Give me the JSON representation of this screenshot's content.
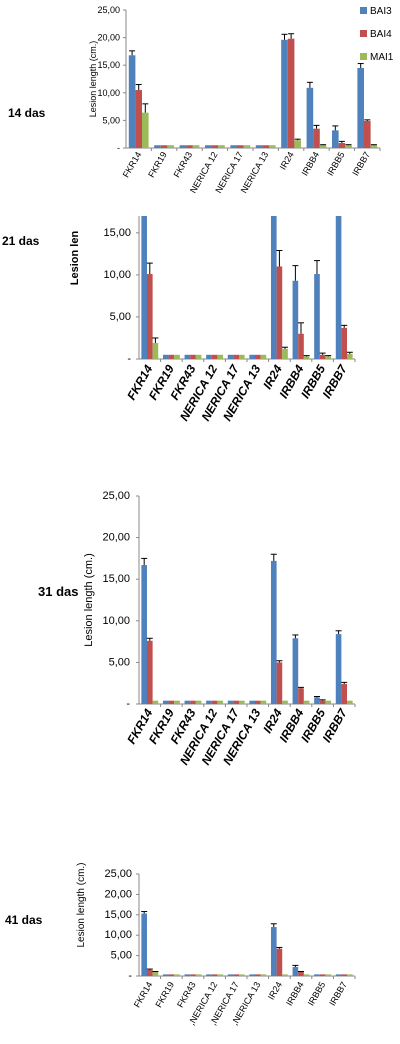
{
  "legend": [
    {
      "name": "BAI3",
      "color": "#4f81bd"
    },
    {
      "name": "BAI4",
      "color": "#c0504d"
    },
    {
      "name": "MAI1",
      "color": "#9bbb59"
    }
  ],
  "chart_data": [
    {
      "type": "bar",
      "panel_label": "14 das",
      "ylabel": "Lesion length (cm.)",
      "ylim": [
        0,
        25
      ],
      "yticks": [
        "-",
        "5,00",
        "10,00",
        "15,00",
        "20,00",
        "25,00"
      ],
      "categories": [
        "FKR14",
        "FKR19",
        "FKR43",
        "NERICA 12",
        "NERICA 17",
        "NERICA 13",
        "IR24",
        "IRBB4",
        "IRBB5",
        "IRBB7"
      ],
      "series": [
        {
          "name": "BAI3",
          "values": [
            16.8,
            0.5,
            0.5,
            0.5,
            0.5,
            0.5,
            19.6,
            10.9,
            3.2,
            14.5
          ],
          "errors": [
            0.8,
            0,
            0,
            0,
            0,
            0,
            1.0,
            1.0,
            0.8,
            0.8
          ]
        },
        {
          "name": "BAI4",
          "values": [
            10.5,
            0.5,
            0.5,
            0.5,
            0.5,
            0.5,
            19.8,
            3.5,
            0.9,
            4.9
          ],
          "errors": [
            1.0,
            0,
            0,
            0,
            0,
            0,
            0.9,
            0.6,
            0.3,
            0.2
          ]
        },
        {
          "name": "MAI1",
          "values": [
            6.4,
            0.5,
            0.5,
            0.5,
            0.5,
            0.5,
            1.4,
            0.5,
            0.5,
            0.5
          ],
          "errors": [
            1.6,
            0,
            0,
            0,
            0,
            0,
            0.2,
            0.1,
            0.1,
            0.1
          ]
        }
      ]
    },
    {
      "type": "bar",
      "panel_label": "21 das",
      "ylabel": "Lesion len",
      "ylim": [
        0,
        17
      ],
      "yticks": [
        "-",
        "5,00",
        "10,00",
        "15,00"
      ],
      "categories": [
        "FKR14",
        "FKR19",
        "FKR43",
        "NERICA 12",
        "NERICA 17",
        "NERICA 13",
        "IR24",
        "IRBB4",
        "IRBB5",
        "IRBB7"
      ],
      "series": [
        {
          "name": "BAI3",
          "values": [
            17,
            0.5,
            0.5,
            0.5,
            0.5,
            0.5,
            17,
            9.3,
            10.1,
            17
          ],
          "errors": [
            0,
            0,
            0,
            0,
            0,
            0,
            0,
            1.8,
            1.6,
            0
          ]
        },
        {
          "name": "BAI4",
          "values": [
            10.1,
            0.5,
            0.5,
            0.5,
            0.5,
            0.5,
            11.0,
            3.0,
            0.5,
            3.7
          ],
          "errors": [
            1.3,
            0,
            0,
            0,
            0,
            0,
            1.9,
            1.3,
            0.2,
            0.3
          ]
        },
        {
          "name": "MAI1",
          "values": [
            1.9,
            0.5,
            0.5,
            0.5,
            0.5,
            0.5,
            1.2,
            0.3,
            0.3,
            0.6
          ],
          "errors": [
            0.6,
            0,
            0,
            0,
            0,
            0,
            0.2,
            0.1,
            0.1,
            0.2
          ]
        }
      ]
    },
    {
      "type": "bar",
      "panel_label": "31 das",
      "ylabel": "Lesion length (cm.)",
      "ylim": [
        0,
        25
      ],
      "yticks": [
        "-",
        "5,00",
        "10,00",
        "15,00",
        "20,00",
        "25,00"
      ],
      "categories": [
        "FKR14",
        "FKR19",
        "FKR43",
        "NERICA 12",
        "NERICA 17",
        "NERICA 13",
        "IR24",
        "IRBB4",
        "IRBB5",
        "IRBB7"
      ],
      "series": [
        {
          "name": "BAI3",
          "values": [
            16.7,
            0.4,
            0.4,
            0.4,
            0.4,
            0.4,
            17.2,
            7.9,
            0.8,
            8.4
          ],
          "errors": [
            0.8,
            0,
            0,
            0,
            0,
            0,
            0.8,
            0.4,
            0.1,
            0.4
          ]
        },
        {
          "name": "BAI4",
          "values": [
            7.6,
            0.4,
            0.4,
            0.4,
            0.4,
            0.4,
            5.0,
            1.9,
            0.4,
            2.4
          ],
          "errors": [
            0.3,
            0,
            0,
            0,
            0,
            0,
            0.2,
            0.1,
            0.1,
            0.2
          ]
        },
        {
          "name": "MAI1",
          "values": [
            0.4,
            0.4,
            0.4,
            0.4,
            0.4,
            0.4,
            0.4,
            0.4,
            0.4,
            0.4
          ],
          "errors": [
            0,
            0,
            0,
            0,
            0,
            0,
            0,
            0,
            0,
            0
          ]
        }
      ]
    },
    {
      "type": "bar",
      "panel_label": "41 das",
      "ylabel": "Lesion length (cm.)",
      "ylim": [
        0,
        25
      ],
      "yticks": [
        "-",
        "5,00",
        "10,00",
        "15,00",
        "20,00",
        "25,00"
      ],
      "categories": [
        "FKR14",
        "FKR19",
        "FKR43",
        ",NERICA 12",
        ",NERICA 17",
        ",NERICA 13",
        "IR24",
        "IRBB4",
        "IRBB5",
        "IRBB7"
      ],
      "series": [
        {
          "name": "BAI3",
          "values": [
            15.3,
            0.4,
            0.4,
            0.4,
            0.4,
            0.4,
            12.0,
            2.2,
            0.4,
            0.4
          ],
          "errors": [
            0.5,
            0,
            0,
            0,
            0,
            0,
            0.8,
            0.4,
            0,
            0
          ]
        },
        {
          "name": "BAI4",
          "values": [
            1.5,
            0.4,
            0.4,
            0.4,
            0.4,
            0.4,
            6.7,
            1.0,
            0.4,
            0.4
          ],
          "errors": [
            0.2,
            0,
            0,
            0,
            0,
            0,
            0.3,
            0.1,
            0,
            0
          ]
        },
        {
          "name": "MAI1",
          "values": [
            1.0,
            0.4,
            0.4,
            0.4,
            0.4,
            0.4,
            0.4,
            0.4,
            0.4,
            0.4
          ],
          "errors": [
            0.1,
            0,
            0,
            0,
            0,
            0,
            0,
            0,
            0,
            0
          ]
        }
      ]
    }
  ]
}
